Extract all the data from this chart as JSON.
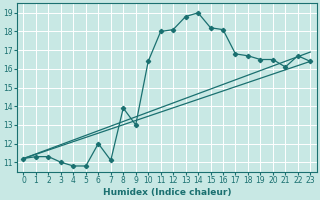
{
  "xlabel": "Humidex (Indice chaleur)",
  "xlim": [
    -0.5,
    23.5
  ],
  "ylim": [
    10.5,
    19.5
  ],
  "xticks": [
    0,
    1,
    2,
    3,
    4,
    5,
    6,
    7,
    8,
    9,
    10,
    11,
    12,
    13,
    14,
    15,
    16,
    17,
    18,
    19,
    20,
    21,
    22,
    23
  ],
  "yticks": [
    11,
    12,
    13,
    14,
    15,
    16,
    17,
    18,
    19
  ],
  "background_color": "#c8e8e4",
  "grid_color": "#ffffff",
  "line_color": "#1a7070",
  "line1_x": [
    0,
    1,
    2,
    3,
    4,
    5,
    6,
    7,
    8,
    9,
    10,
    11,
    12,
    13,
    14,
    15,
    16,
    17,
    18,
    19,
    20,
    21,
    22,
    23
  ],
  "line1_y": [
    11.2,
    11.3,
    11.3,
    11.0,
    10.8,
    10.8,
    12.0,
    11.1,
    13.9,
    13.0,
    16.4,
    18.0,
    18.1,
    18.8,
    19.0,
    18.2,
    18.1,
    16.8,
    16.7,
    16.5,
    16.5,
    16.1,
    16.7,
    16.4
  ],
  "line2_x": [
    0,
    23
  ],
  "line2_y": [
    11.2,
    16.4
  ],
  "line3_x": [
    0,
    23
  ],
  "line3_y": [
    11.2,
    16.9
  ]
}
